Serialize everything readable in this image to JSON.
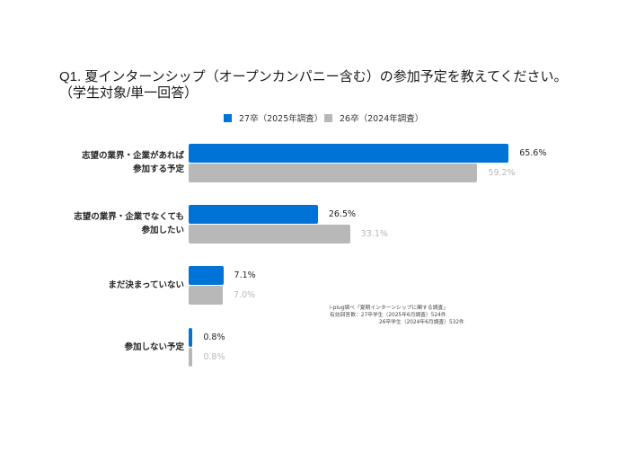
{
  "title": {
    "line1": "Q1. 夏インターンシップ（オープンカンパニー含む）の参加予定を教えてください。",
    "line2": "（学生対象/単一回答）"
  },
  "legend": {
    "items": [
      {
        "label": "27卒（2025年調査）",
        "color": "#0073d6"
      },
      {
        "label": "26卒（2024年調査）",
        "color": "#b8b8b8"
      }
    ]
  },
  "note": {
    "line1": "i-plug調べ「夏期インターンシップに関する調査」",
    "line2": "有効回答数：27卒学生（2025年6月調査）524件",
    "line3": "26卒学生（2024年6月調査）532件"
  },
  "chart_data": {
    "type": "bar",
    "orientation": "horizontal",
    "title": "Q1. 夏インターンシップ（オープンカンパニー含む）の参加予定を教えてください。（学生対象/単一回答）",
    "xlabel": "",
    "ylabel": "",
    "unit": "%",
    "grid": false,
    "legend_position": "top",
    "categories": [
      {
        "line1": "志望の業界・企業があれば",
        "line2": "参加する予定"
      },
      {
        "line1": "志望の業界・企業でなくても",
        "line2": "参加したい"
      },
      {
        "line1": "まだ決まっていない",
        "line2": ""
      },
      {
        "line1": "参加しない予定",
        "line2": ""
      }
    ],
    "series": [
      {
        "name": "27卒（2025年調査）",
        "color": "#0073d6",
        "values": [
          65.6,
          26.5,
          7.1,
          0.8
        ],
        "labels": [
          "65.6%",
          "26.5%",
          "7.1%",
          "0.8%"
        ]
      },
      {
        "name": "26卒（2024年調査）",
        "color": "#b8b8b8",
        "values": [
          59.2,
          33.1,
          7.0,
          0.8
        ],
        "labels": [
          "59.2%",
          "33.1%",
          "7.0%",
          "0.8%"
        ]
      }
    ]
  }
}
